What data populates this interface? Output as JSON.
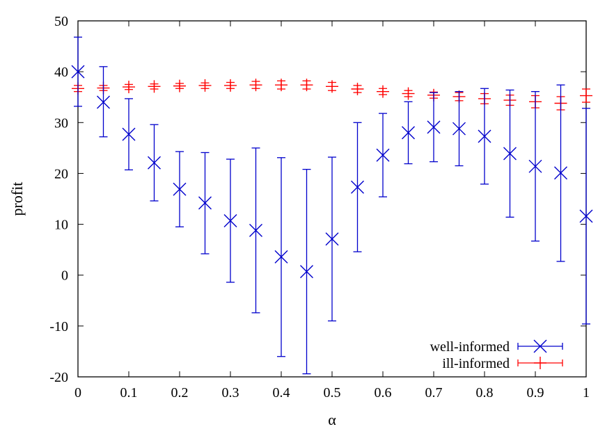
{
  "chart_data": {
    "type": "scatter",
    "title": "",
    "xlabel": "α",
    "ylabel": "profit",
    "xlim": [
      0,
      1
    ],
    "ylim": [
      -20,
      50
    ],
    "x_ticks": [
      0,
      0.1,
      0.2,
      0.3,
      0.4,
      0.5,
      0.6,
      0.7,
      0.8,
      0.9,
      1
    ],
    "y_ticks": [
      -20,
      -10,
      0,
      10,
      20,
      30,
      40,
      50
    ],
    "x_tick_labels": [
      "0",
      "0.1",
      "0.2",
      "0.3",
      "0.4",
      "0.5",
      "0.6",
      "0.7",
      "0.8",
      "0.9",
      "1"
    ],
    "y_tick_labels": [
      "-20",
      "-10",
      "0",
      "10",
      "20",
      "30",
      "40",
      "50"
    ],
    "grid": false,
    "legend_position": "bottom-right",
    "x": [
      0,
      0.05,
      0.1,
      0.15,
      0.2,
      0.25,
      0.3,
      0.35,
      0.4,
      0.45,
      0.5,
      0.55,
      0.6,
      0.65,
      0.7,
      0.75,
      0.8,
      0.85,
      0.9,
      0.95,
      1
    ],
    "series": [
      {
        "name": "well-informed",
        "color": "#0000cc",
        "marker": "x",
        "values": [
          40.0,
          34.0,
          27.7,
          22.1,
          16.9,
          14.2,
          10.7,
          8.8,
          3.6,
          0.7,
          7.1,
          17.3,
          23.6,
          28.0,
          29.1,
          28.8,
          27.3,
          23.9,
          21.4,
          20.1,
          11.6
        ],
        "lower": [
          33.2,
          27.2,
          20.7,
          14.6,
          9.5,
          4.2,
          -1.4,
          -7.4,
          -16.0,
          -19.4,
          -9.0,
          4.6,
          15.4,
          21.9,
          22.3,
          21.5,
          17.9,
          11.4,
          6.7,
          2.7,
          -9.6
        ],
        "upper": [
          46.8,
          41.0,
          34.7,
          29.6,
          24.3,
          24.1,
          22.8,
          25.0,
          23.1,
          20.8,
          23.2,
          30.0,
          31.8,
          34.1,
          35.9,
          36.1,
          36.7,
          36.4,
          36.1,
          37.4,
          32.8
        ]
      },
      {
        "name": "ill-informed",
        "color": "#ff0000",
        "marker": "+",
        "values": [
          36.7,
          36.8,
          37.0,
          37.1,
          37.2,
          37.3,
          37.3,
          37.4,
          37.4,
          37.4,
          37.1,
          36.6,
          36.1,
          35.7,
          35.4,
          35.1,
          34.7,
          34.4,
          34.1,
          33.8,
          35.3
        ],
        "lower": [
          36.1,
          36.3,
          36.5,
          36.6,
          36.7,
          36.7,
          36.7,
          36.7,
          36.6,
          36.6,
          36.3,
          35.9,
          35.5,
          35.1,
          34.8,
          34.3,
          33.7,
          33.4,
          32.9,
          32.5,
          34.0
        ],
        "upper": [
          37.3,
          37.3,
          37.5,
          37.6,
          37.7,
          37.8,
          37.9,
          38.1,
          38.2,
          38.2,
          37.9,
          37.3,
          36.7,
          36.3,
          36.0,
          35.9,
          35.7,
          35.4,
          35.3,
          35.1,
          36.6
        ]
      }
    ]
  }
}
